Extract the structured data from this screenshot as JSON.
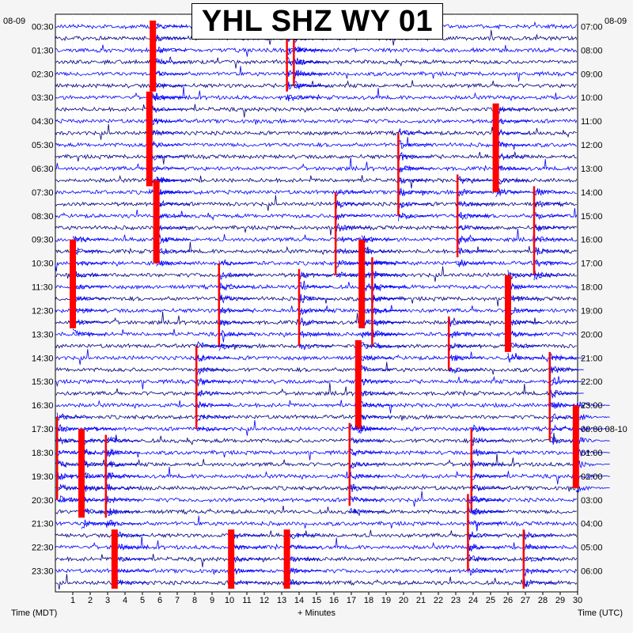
{
  "chart_data": {
    "type": "line",
    "title": "YHL SHZ WY 01",
    "left_date": "08-09",
    "right_date": "08-09",
    "xlabel": "+ Minutes",
    "left_axis_label": "Time (MDT)",
    "right_axis_label": "Time (UTC)",
    "x_ticks": [
      "1",
      "2",
      "3",
      "4",
      "5",
      "6",
      "7",
      "8",
      "9",
      "10",
      "11",
      "12",
      "13",
      "14",
      "15",
      "16",
      "17",
      "18",
      "19",
      "20",
      "21",
      "22",
      "23",
      "24",
      "25",
      "26",
      "27",
      "28",
      "29",
      "30"
    ],
    "xlim": [
      0,
      30
    ],
    "rows_per_hour": 2,
    "row_count": 48,
    "left_hour_labels": [
      "00:30",
      "01:30",
      "02:30",
      "03:30",
      "04:30",
      "05:30",
      "06:30",
      "07:30",
      "08:30",
      "09:30",
      "10:30",
      "11:30",
      "12:30",
      "13:30",
      "14:30",
      "15:30",
      "16:30",
      "17:30",
      "18:30",
      "19:30",
      "20:30",
      "21:30",
      "22:30",
      "23:30"
    ],
    "right_hour_labels": [
      "07:00",
      "08:00",
      "09:00",
      "10:00",
      "11:00",
      "12:00",
      "13:00",
      "14:00",
      "15:00",
      "16:00",
      "17:00",
      "18:00",
      "19:00",
      "20:00",
      "21:00",
      "22:00",
      "23:00",
      "00:00 08-10",
      "01:00",
      "02:00",
      "03:00",
      "04:00",
      "05:00",
      "06:00"
    ],
    "trace_colors": [
      "#0000ff",
      "#000080",
      "#0000ff",
      "#000080"
    ],
    "clip_color": "#ff0000",
    "events": [
      {
        "minute": 1.0,
        "row_start": 18.5,
        "row_end": 25.5,
        "type": "clip"
      },
      {
        "minute": 5.6,
        "row_start": 0.0,
        "row_end": 5.5,
        "type": "clip"
      },
      {
        "minute": 5.4,
        "row_start": 6.0,
        "row_end": 13.5,
        "type": "clip"
      },
      {
        "minute": 5.8,
        "row_start": 13.5,
        "row_end": 20.0,
        "type": "clip"
      },
      {
        "minute": 13.3,
        "row_start": 1.5,
        "row_end": 5.5,
        "type": "spike"
      },
      {
        "minute": 13.7,
        "row_start": 1.5,
        "row_end": 5.0,
        "type": "spike"
      },
      {
        "minute": 25.3,
        "row_start": 7.0,
        "row_end": 14.0,
        "type": "clip"
      },
      {
        "minute": 19.7,
        "row_start": 9.5,
        "row_end": 16.0,
        "type": "spike"
      },
      {
        "minute": 23.1,
        "row_start": 13.0,
        "row_end": 19.5,
        "type": "spike"
      },
      {
        "minute": 27.5,
        "row_start": 14.0,
        "row_end": 21.0,
        "type": "spike"
      },
      {
        "minute": 16.1,
        "row_start": 14.5,
        "row_end": 21.0,
        "type": "spike"
      },
      {
        "minute": 17.6,
        "row_start": 18.5,
        "row_end": 25.5,
        "type": "clip"
      },
      {
        "minute": 18.2,
        "row_start": 20.0,
        "row_end": 27.0,
        "type": "spike"
      },
      {
        "minute": 9.4,
        "row_start": 20.5,
        "row_end": 27.0,
        "type": "spike"
      },
      {
        "minute": 14.0,
        "row_start": 21.0,
        "row_end": 27.0,
        "type": "spike"
      },
      {
        "minute": 26.0,
        "row_start": 21.5,
        "row_end": 27.5,
        "type": "clip"
      },
      {
        "minute": 17.4,
        "row_start": 27.0,
        "row_end": 34.0,
        "type": "clip"
      },
      {
        "minute": 8.1,
        "row_start": 27.5,
        "row_end": 34.0,
        "type": "spike"
      },
      {
        "minute": 22.6,
        "row_start": 25.0,
        "row_end": 29.0,
        "type": "spike"
      },
      {
        "minute": 28.4,
        "row_start": 28.0,
        "row_end": 35.0,
        "type": "spike"
      },
      {
        "minute": 0.1,
        "row_start": 33.5,
        "row_end": 40.0,
        "type": "spike"
      },
      {
        "minute": 1.5,
        "row_start": 34.5,
        "row_end": 41.5,
        "type": "clip"
      },
      {
        "minute": 2.9,
        "row_start": 35.0,
        "row_end": 41.5,
        "type": "spike"
      },
      {
        "minute": 16.9,
        "row_start": 34.0,
        "row_end": 40.5,
        "type": "spike"
      },
      {
        "minute": 23.9,
        "row_start": 34.5,
        "row_end": 41.0,
        "type": "spike"
      },
      {
        "minute": 29.9,
        "row_start": 32.5,
        "row_end": 39.0,
        "type": "clip"
      },
      {
        "minute": 3.4,
        "row_start": 43.0,
        "row_end": 48.0,
        "type": "clip"
      },
      {
        "minute": 10.1,
        "row_start": 43.0,
        "row_end": 48.0,
        "type": "clip"
      },
      {
        "minute": 13.3,
        "row_start": 43.0,
        "row_end": 48.0,
        "type": "clip"
      },
      {
        "minute": 23.7,
        "row_start": 40.0,
        "row_end": 46.0,
        "type": "spike"
      },
      {
        "minute": 26.9,
        "row_start": 43.0,
        "row_end": 47.5,
        "type": "spike"
      }
    ]
  }
}
